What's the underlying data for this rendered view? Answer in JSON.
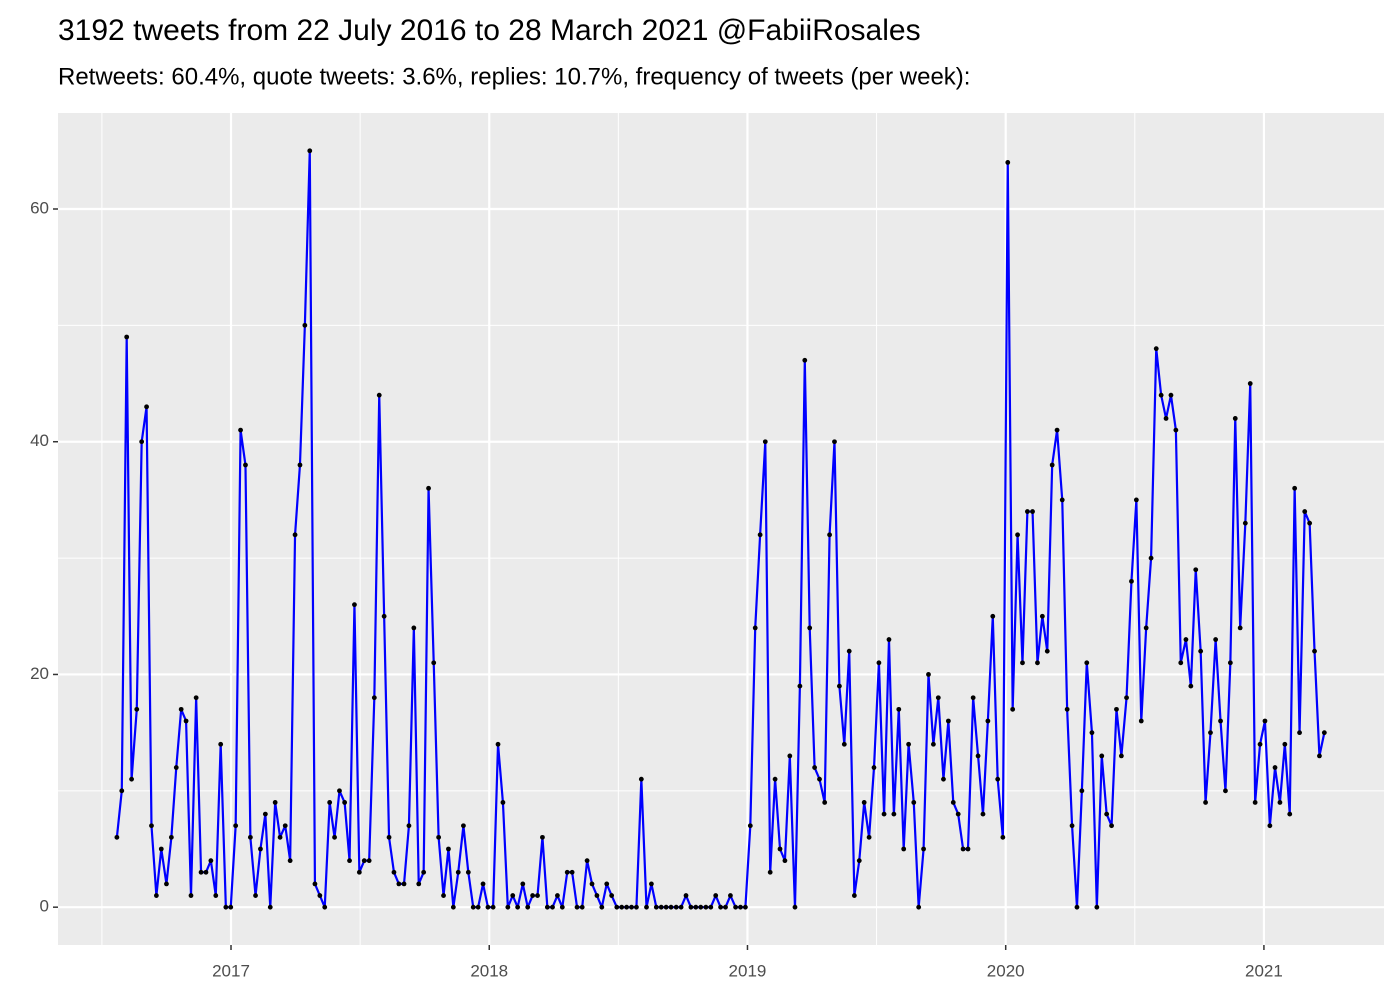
{
  "chart_data": {
    "type": "line",
    "title": "3192 tweets from 22 July 2016 to 28 March 2021 @FabiiRosales",
    "subtitle": "Retweets: 60.4%, quote tweets: 3.6%, replies: 10.7%, frequency of tweets (per week):",
    "x": [
      2016.558,
      2016.577,
      2016.596,
      2016.615,
      2016.635,
      2016.654,
      2016.673,
      2016.692,
      2016.711,
      2016.73,
      2016.75,
      2016.769,
      2016.788,
      2016.807,
      2016.826,
      2016.845,
      2016.865,
      2016.884,
      2016.903,
      2016.922,
      2016.941,
      2016.96,
      2016.98,
      2016.999,
      2017.018,
      2017.037,
      2017.056,
      2017.075,
      2017.095,
      2017.114,
      2017.133,
      2017.152,
      2017.171,
      2017.19,
      2017.21,
      2017.229,
      2017.248,
      2017.267,
      2017.286,
      2017.305,
      2017.325,
      2017.344,
      2017.363,
      2017.382,
      2017.401,
      2017.42,
      2017.44,
      2017.459,
      2017.478,
      2017.497,
      2017.516,
      2017.535,
      2017.555,
      2017.574,
      2017.593,
      2017.612,
      2017.631,
      2017.65,
      2017.67,
      2017.689,
      2017.708,
      2017.727,
      2017.746,
      2017.765,
      2017.785,
      2017.804,
      2017.823,
      2017.842,
      2017.861,
      2017.88,
      2017.9,
      2017.919,
      2017.938,
      2017.957,
      2017.976,
      2017.995,
      2018.015,
      2018.034,
      2018.053,
      2018.072,
      2018.091,
      2018.11,
      2018.13,
      2018.149,
      2018.168,
      2018.187,
      2018.206,
      2018.225,
      2018.245,
      2018.264,
      2018.283,
      2018.302,
      2018.321,
      2018.34,
      2018.36,
      2018.379,
      2018.398,
      2018.417,
      2018.436,
      2018.455,
      2018.474,
      2018.494,
      2018.513,
      2018.532,
      2018.551,
      2018.57,
      2018.589,
      2018.609,
      2018.628,
      2018.647,
      2018.666,
      2018.685,
      2018.704,
      2018.724,
      2018.743,
      2018.762,
      2018.781,
      2018.8,
      2018.819,
      2018.839,
      2018.858,
      2018.877,
      2018.896,
      2018.915,
      2018.934,
      2018.954,
      2018.973,
      2018.992,
      2019.011,
      2019.03,
      2019.049,
      2019.069,
      2019.088,
      2019.107,
      2019.126,
      2019.145,
      2019.164,
      2019.184,
      2019.203,
      2019.222,
      2019.241,
      2019.26,
      2019.279,
      2019.299,
      2019.318,
      2019.337,
      2019.356,
      2019.375,
      2019.394,
      2019.414,
      2019.433,
      2019.452,
      2019.471,
      2019.49,
      2019.509,
      2019.529,
      2019.548,
      2019.567,
      2019.586,
      2019.605,
      2019.624,
      2019.644,
      2019.663,
      2019.682,
      2019.701,
      2019.72,
      2019.739,
      2019.759,
      2019.778,
      2019.797,
      2019.816,
      2019.835,
      2019.854,
      2019.874,
      2019.893,
      2019.912,
      2019.931,
      2019.95,
      2019.969,
      2019.989,
      2020.008,
      2020.027,
      2020.046,
      2020.065,
      2020.084,
      2020.104,
      2020.123,
      2020.142,
      2020.161,
      2020.18,
      2020.199,
      2020.219,
      2020.238,
      2020.257,
      2020.276,
      2020.295,
      2020.314,
      2020.334,
      2020.353,
      2020.372,
      2020.391,
      2020.41,
      2020.429,
      2020.448,
      2020.468,
      2020.487,
      2020.506,
      2020.525,
      2020.544,
      2020.563,
      2020.583,
      2020.602,
      2020.621,
      2020.64,
      2020.659,
      2020.678,
      2020.698,
      2020.717,
      2020.736,
      2020.755,
      2020.774,
      2020.793,
      2020.813,
      2020.832,
      2020.851,
      2020.87,
      2020.889,
      2020.908,
      2020.928,
      2020.947,
      2020.966,
      2020.985,
      2021.004,
      2021.023,
      2021.043,
      2021.062,
      2021.081,
      2021.1,
      2021.119,
      2021.138,
      2021.158,
      2021.177,
      2021.196,
      2021.215,
      2021.234
    ],
    "series": [
      {
        "color": "#0000ff",
        "marker_color": "#000000",
        "values": [
          6,
          10,
          49,
          11,
          17,
          40,
          43,
          7,
          1,
          5,
          2,
          6,
          12,
          17,
          16,
          1,
          18,
          3,
          3,
          4,
          1,
          14,
          0,
          0,
          7,
          41,
          38,
          6,
          1,
          5,
          8,
          0,
          9,
          6,
          7,
          4,
          32,
          38,
          50,
          65,
          2,
          1,
          0,
          9,
          6,
          10,
          9,
          4,
          26,
          3,
          4,
          4,
          18,
          44,
          25,
          6,
          3,
          2,
          2,
          7,
          24,
          2,
          3,
          36,
          21,
          6,
          1,
          5,
          0,
          3,
          7,
          3,
          0,
          0,
          2,
          0,
          0,
          14,
          9,
          0,
          1,
          0,
          2,
          0,
          1,
          1,
          6,
          0,
          0,
          1,
          0,
          3,
          3,
          0,
          0,
          4,
          2,
          1,
          0,
          2,
          1,
          0,
          0,
          0,
          0,
          0,
          11,
          0,
          2,
          0,
          0,
          0,
          0,
          0,
          0,
          1,
          0,
          0,
          0,
          0,
          0,
          1,
          0,
          0,
          1,
          0,
          0,
          0,
          7,
          24,
          32,
          40,
          3,
          11,
          5,
          4,
          13,
          0,
          19,
          47,
          24,
          12,
          11,
          9,
          32,
          40,
          19,
          14,
          22,
          1,
          4,
          9,
          6,
          12,
          21,
          8,
          23,
          8,
          17,
          5,
          14,
          9,
          0,
          5,
          20,
          14,
          18,
          11,
          16,
          9,
          8,
          5,
          5,
          18,
          13,
          8,
          16,
          25,
          11,
          6,
          64,
          17,
          32,
          21,
          34,
          34,
          21,
          25,
          22,
          38,
          41,
          35,
          17,
          7,
          0,
          10,
          21,
          15,
          0,
          13,
          8,
          7,
          17,
          13,
          18,
          28,
          35,
          16,
          24,
          30,
          48,
          44,
          42,
          44,
          41,
          21,
          23,
          19,
          29,
          22,
          9,
          15,
          23,
          16,
          10,
          21,
          42,
          24,
          33,
          45,
          9,
          14,
          16,
          7,
          12,
          9,
          14,
          8,
          36,
          15,
          34,
          33,
          22,
          13,
          15
        ]
      }
    ],
    "xlim": [
      2016.33,
      2021.465
    ],
    "xticks": [
      2017,
      2018,
      2019,
      2020,
      2021
    ],
    "x_minor_ticks": [
      2016.5,
      2017.5,
      2018.5,
      2019.5,
      2020.5
    ],
    "ylim": [
      -3.25,
      68.25
    ],
    "yticks": [
      0,
      20,
      40,
      60
    ],
    "y_minor_ticks": [
      10,
      30,
      50
    ],
    "grid": true,
    "panel_color": "#ebebeb"
  }
}
